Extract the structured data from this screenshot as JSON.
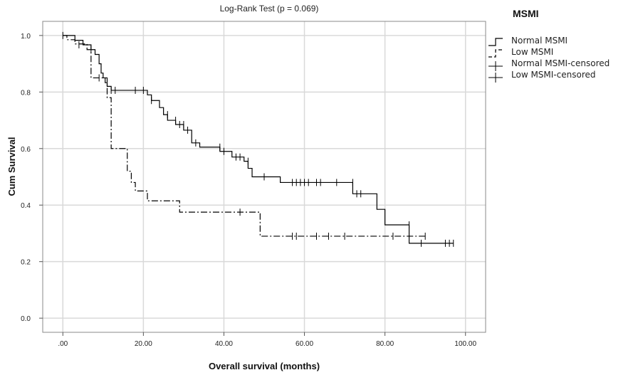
{
  "chart_data": {
    "type": "line",
    "title": "Log-Rank Test (p = 0.069)",
    "xlabel": "Overall survival (months)",
    "ylabel": "Cum Survival",
    "xlim": [
      -5,
      105
    ],
    "ylim": [
      -0.05,
      1.05
    ],
    "x_ticks": [
      0,
      20,
      40,
      60,
      80,
      100
    ],
    "x_tick_labels": [
      ".00",
      "20.00",
      "40.00",
      "60.00",
      "80.00",
      "100.00"
    ],
    "y_ticks": [
      0,
      0.2,
      0.4,
      0.6,
      0.8,
      1.0
    ],
    "y_tick_labels": [
      "0.0",
      "0.2",
      "0.4",
      "0.6",
      "0.8",
      "1.0"
    ],
    "grid": true,
    "legend": {
      "title": "MSMI",
      "position": "right",
      "entries": [
        "Normal MSMI",
        "Low MSMI",
        "Normal MSMI-censored",
        "Low MSMI-censored"
      ]
    },
    "series": [
      {
        "name": "Normal MSMI",
        "style": "solid",
        "color": "#000000",
        "steps": [
          [
            0,
            1.0
          ],
          [
            3,
            0.983
          ],
          [
            5,
            0.967
          ],
          [
            7,
            0.95
          ],
          [
            8,
            0.933
          ],
          [
            9,
            0.9
          ],
          [
            9.5,
            0.867
          ],
          [
            10,
            0.85
          ],
          [
            10.5,
            0.833
          ],
          [
            11,
            0.82
          ],
          [
            12,
            0.806
          ],
          [
            21,
            0.79
          ],
          [
            22,
            0.77
          ],
          [
            24,
            0.745
          ],
          [
            25,
            0.72
          ],
          [
            26,
            0.7
          ],
          [
            28,
            0.685
          ],
          [
            30,
            0.665
          ],
          [
            32,
            0.62
          ],
          [
            34,
            0.605
          ],
          [
            39,
            0.59
          ],
          [
            42,
            0.57
          ],
          [
            45,
            0.555
          ],
          [
            46,
            0.53
          ],
          [
            47,
            0.5
          ],
          [
            54,
            0.48
          ],
          [
            72,
            0.44
          ],
          [
            78,
            0.385
          ],
          [
            80,
            0.33
          ],
          [
            86,
            0.265
          ]
        ],
        "end_x": 97,
        "censored": [
          [
            0,
            1.0
          ],
          [
            4,
            0.967
          ],
          [
            7,
            0.95
          ],
          [
            12,
            0.806
          ],
          [
            13,
            0.806
          ],
          [
            18,
            0.806
          ],
          [
            20,
            0.806
          ],
          [
            22,
            0.77
          ],
          [
            26,
            0.72
          ],
          [
            28,
            0.7
          ],
          [
            29,
            0.685
          ],
          [
            30,
            0.685
          ],
          [
            31,
            0.665
          ],
          [
            33,
            0.62
          ],
          [
            39,
            0.605
          ],
          [
            40,
            0.59
          ],
          [
            43,
            0.57
          ],
          [
            44,
            0.57
          ],
          [
            46,
            0.555
          ],
          [
            50,
            0.5
          ],
          [
            57,
            0.48
          ],
          [
            58,
            0.48
          ],
          [
            59,
            0.48
          ],
          [
            60,
            0.48
          ],
          [
            61,
            0.48
          ],
          [
            63,
            0.48
          ],
          [
            64,
            0.48
          ],
          [
            68,
            0.48
          ],
          [
            72,
            0.48
          ],
          [
            73,
            0.44
          ],
          [
            74,
            0.44
          ],
          [
            86,
            0.33
          ],
          [
            89,
            0.265
          ],
          [
            95,
            0.265
          ],
          [
            96,
            0.265
          ],
          [
            97,
            0.265
          ]
        ]
      },
      {
        "name": "Low MSMI",
        "style": "dashed",
        "color": "#000000",
        "steps": [
          [
            0,
            1.0
          ],
          [
            1,
            0.985
          ],
          [
            3,
            0.97
          ],
          [
            6,
            0.95
          ],
          [
            7,
            0.85
          ],
          [
            11,
            0.78
          ],
          [
            12,
            0.6
          ],
          [
            16,
            0.52
          ],
          [
            17,
            0.48
          ],
          [
            18,
            0.45
          ],
          [
            21,
            0.415
          ],
          [
            29,
            0.375
          ],
          [
            49,
            0.29
          ]
        ],
        "end_x": 90,
        "censored": [
          [
            9,
            0.85
          ],
          [
            44,
            0.375
          ],
          [
            57,
            0.29
          ],
          [
            58,
            0.29
          ],
          [
            63,
            0.29
          ],
          [
            66,
            0.29
          ],
          [
            70,
            0.29
          ],
          [
            82,
            0.29
          ],
          [
            90,
            0.29
          ]
        ]
      }
    ]
  }
}
